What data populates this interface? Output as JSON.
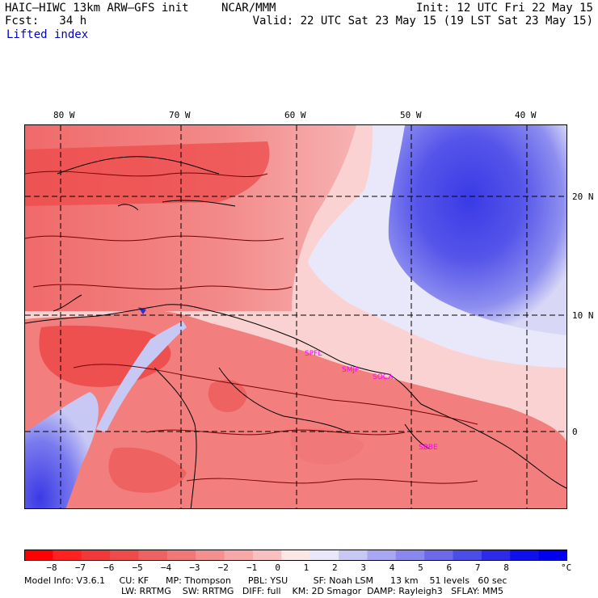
{
  "header": {
    "model_title": "HAIC–HIWC 13km ARW–GFS init",
    "institution": "NCAR/MMM",
    "init": "Init: 12 UTC Fri 22 May 15",
    "fcst": "Fcst:   34 h",
    "valid": "Valid: 22 UTC Sat 23 May 15 (19 LST Sat 23 May 15)",
    "field": "Lifted index"
  },
  "map": {
    "lon_labels": [
      "80 W",
      "70 W",
      "60 W",
      "50 W",
      "40 W"
    ],
    "lat_labels": [
      "20 N",
      "10 N",
      "0"
    ],
    "stations": [
      "SPFL",
      "SMJP",
      "SOCA",
      "SBBE"
    ],
    "colors": {
      "station": "#ff00ff",
      "grid": "#000000",
      "coast": "#000000",
      "contour": "#7a0000"
    }
  },
  "colorbar": {
    "tick_labels": [
      "−8",
      "−7",
      "−6",
      "−5",
      "−4",
      "−3",
      "−2",
      "−1",
      "0",
      "1",
      "2",
      "3",
      "4",
      "5",
      "6",
      "7",
      "8"
    ],
    "unit": "°C",
    "colors": [
      "#ff0000",
      "#ff2222",
      "#f23838",
      "#ee4b4b",
      "#ee6262",
      "#f07878",
      "#f49090",
      "#f7a8a8",
      "#fac0c0",
      "#fde6e6",
      "#e8e8fa",
      "#c8c8f5",
      "#a8a8f2",
      "#8888ee",
      "#6a6aeb",
      "#4c4ce8",
      "#2c2ce8",
      "#1010ec",
      "#0000f0"
    ]
  },
  "footer": {
    "line1": "Model Info: V3.6.1     CU: KF      MP: Thompson      PBL: YSU         SF: Noah LSM      13 km    51 levels   60 sec",
    "line2": "LW: RRTMG    SW: RRTMG   DIFF: full    KM: 2D Smagor  DAMP: Rayleigh3   SFLAY: MM5"
  }
}
